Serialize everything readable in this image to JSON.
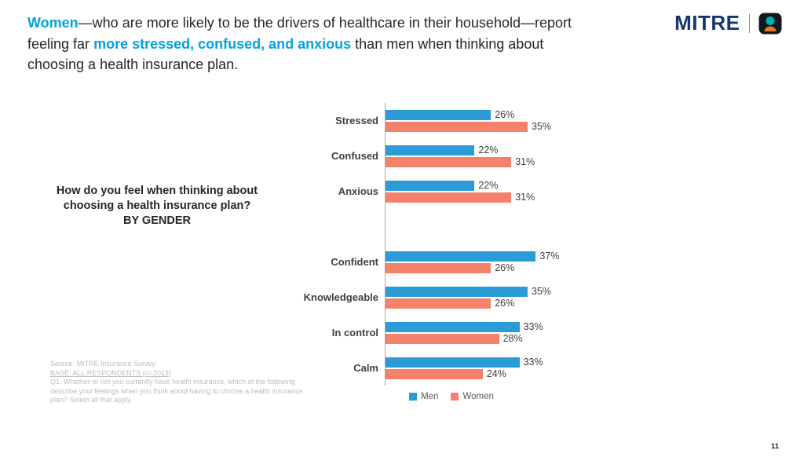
{
  "page_number": "11",
  "logo": {
    "brand": "MITRE"
  },
  "header": {
    "highlight_color": "#00A3E0",
    "parts": [
      {
        "text": "Women",
        "highlight": true
      },
      {
        "text": "—who are more likely to be the drivers of healthcare in their household—report feeling far ",
        "highlight": false
      },
      {
        "text": "more stressed, confused, and anxious",
        "highlight": true
      },
      {
        "text": " than men when thinking about choosing a health insurance plan.",
        "highlight": false
      }
    ]
  },
  "question": {
    "line1": "How do you feel when thinking about",
    "line2": "choosing a health insurance plan?",
    "line3": "BY GENDER"
  },
  "source": {
    "line1": "Source: MITRE Insurance Survey",
    "line2": "BASE: ALL RESPONDENTS  (n=2013)",
    "line3": "Q1. Whether or not you currently have health insurance, which of the following describe your feelings when you think about having to choose a health insurance plan? Select all that apply."
  },
  "chart_data": {
    "type": "bar",
    "orientation": "horizontal",
    "title": "How do you feel when thinking about choosing a health insurance plan? BY GENDER",
    "xlabel": "",
    "ylabel": "",
    "xlim": [
      0,
      40
    ],
    "grid": false,
    "legend_position": "bottom",
    "value_suffix": "%",
    "categories": [
      "Stressed",
      "Confused",
      "Anxious",
      "Confident",
      "Knowledgeable",
      "In control",
      "Calm"
    ],
    "group_break_after_index": 2,
    "series": [
      {
        "name": "Men",
        "color": "#2B9CD8",
        "values": [
          26,
          22,
          22,
          37,
          35,
          33,
          33
        ]
      },
      {
        "name": "Women",
        "color": "#F4826A",
        "values": [
          35,
          31,
          31,
          26,
          26,
          28,
          24
        ]
      }
    ]
  }
}
